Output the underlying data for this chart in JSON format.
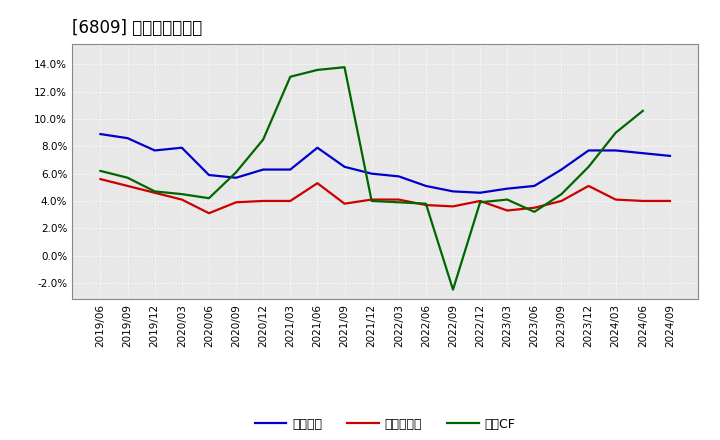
{
  "title": "[6809] マージンの推移",
  "x_labels": [
    "2019/06",
    "2019/09",
    "2019/12",
    "2020/03",
    "2020/06",
    "2020/09",
    "2020/12",
    "2021/03",
    "2021/06",
    "2021/09",
    "2021/12",
    "2022/03",
    "2022/06",
    "2022/09",
    "2022/12",
    "2023/03",
    "2023/06",
    "2023/09",
    "2023/12",
    "2024/03",
    "2024/06",
    "2024/09"
  ],
  "keijo_rieki": [
    8.9,
    8.6,
    7.7,
    7.9,
    5.9,
    5.7,
    6.3,
    6.3,
    7.9,
    6.5,
    6.0,
    5.8,
    5.1,
    4.7,
    4.6,
    4.9,
    5.1,
    6.3,
    7.7,
    7.7,
    7.5,
    7.3
  ],
  "touki_jun_rieki": [
    5.6,
    5.1,
    4.6,
    4.1,
    3.1,
    3.9,
    4.0,
    4.0,
    5.3,
    3.8,
    4.1,
    4.1,
    3.7,
    3.6,
    4.0,
    3.3,
    3.5,
    4.0,
    5.1,
    4.1,
    4.0,
    4.0
  ],
  "eigyo_cf": [
    6.2,
    5.7,
    4.7,
    4.5,
    4.2,
    6.1,
    8.5,
    13.1,
    13.6,
    13.8,
    4.0,
    3.9,
    3.8,
    -2.5,
    3.9,
    4.1,
    3.2,
    4.5,
    6.5,
    9.0,
    10.6,
    null
  ],
  "colors": {
    "keijo": "#0000cc",
    "touki": "#cc0000",
    "eigyo": "#006600"
  },
  "ylim": [
    -3.2,
    15.5
  ],
  "yticks": [
    -2.0,
    0.0,
    2.0,
    4.0,
    6.0,
    8.0,
    10.0,
    12.0,
    14.0
  ],
  "background_color": "#ffffff",
  "plot_bg_color": "#e8e8e8",
  "grid_color": "#ffffff",
  "title_fontsize": 12,
  "legend_fontsize": 9,
  "tick_fontsize": 7.5,
  "legend_keijo": "経常利益",
  "legend_touki": "当期純利益",
  "legend_eigyo": "営業CF"
}
